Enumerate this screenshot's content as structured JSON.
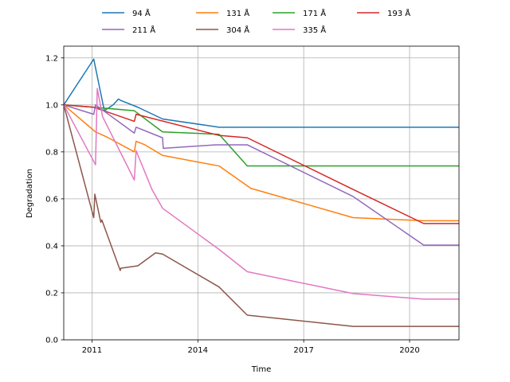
{
  "chart_data": {
    "type": "line",
    "title": "",
    "xlabel": "Time",
    "ylabel": "Degradation",
    "xlim": [
      2010.2,
      2021.4
    ],
    "ylim": [
      0.0,
      1.25
    ],
    "x_ticks": [
      2011,
      2014,
      2017,
      2020
    ],
    "x_tick_labels": [
      "2011",
      "2014",
      "2017",
      "2020"
    ],
    "y_ticks": [
      0.0,
      0.2,
      0.4,
      0.6,
      0.8,
      1.0,
      1.2
    ],
    "y_tick_labels": [
      "0.0",
      "0.2",
      "0.4",
      "0.6",
      "0.8",
      "1.0",
      "1.2"
    ],
    "grid": true,
    "legend_position": "top-center, outside plot, 4 columns",
    "series": [
      {
        "name": "94 Å",
        "color": "#1f77b4",
        "x": [
          2010.2,
          2011.05,
          2011.35,
          2011.6,
          2011.75,
          2011.8,
          2012.3,
          2013.0,
          2014.6,
          2021.4
        ],
        "y": [
          1.0,
          1.195,
          0.975,
          1.0,
          1.025,
          1.02,
          0.99,
          0.94,
          0.905,
          0.905
        ]
      },
      {
        "name": "131 Å",
        "color": "#ff7f0e",
        "x": [
          2010.2,
          2011.1,
          2011.4,
          2012.2,
          2012.25,
          2012.5,
          2013.0,
          2014.6,
          2015.5,
          2018.4,
          2020.4,
          2021.4
        ],
        "y": [
          1.0,
          0.885,
          0.865,
          0.8,
          0.845,
          0.83,
          0.785,
          0.74,
          0.645,
          0.52,
          0.507,
          0.507
        ]
      },
      {
        "name": "171 Å",
        "color": "#2ca02c",
        "x": [
          2010.2,
          2011.05,
          2012.2,
          2013.0,
          2014.6,
          2015.4,
          2021.4
        ],
        "y": [
          1.0,
          0.99,
          0.975,
          0.885,
          0.875,
          0.74,
          0.74
        ]
      },
      {
        "name": "193 Å",
        "color": "#d62728",
        "x": [
          2010.2,
          2011.05,
          2012.2,
          2012.25,
          2014.6,
          2015.4,
          2018.4,
          2020.4,
          2021.4
        ],
        "y": [
          1.0,
          0.99,
          0.93,
          0.96,
          0.87,
          0.86,
          0.64,
          0.495,
          0.495
        ]
      },
      {
        "name": "211 Å",
        "color": "#9467bd",
        "x": [
          2010.2,
          2011.05,
          2011.1,
          2012.2,
          2012.25,
          2013.0,
          2013.02,
          2014.5,
          2015.4,
          2018.4,
          2020.4,
          2021.4
        ],
        "y": [
          1.0,
          0.96,
          1.0,
          0.88,
          0.905,
          0.86,
          0.815,
          0.83,
          0.83,
          0.61,
          0.403,
          0.403
        ]
      },
      {
        "name": "304 Å",
        "color": "#8c564b",
        "x": [
          2010.2,
          2011.05,
          2011.08,
          2011.25,
          2011.28,
          2011.45,
          2011.8,
          2011.82,
          2012.3,
          2012.8,
          2013.0,
          2014.6,
          2015.4,
          2018.4,
          2021.4
        ],
        "y": [
          1.0,
          0.52,
          0.62,
          0.5,
          0.51,
          0.44,
          0.295,
          0.305,
          0.315,
          0.37,
          0.365,
          0.225,
          0.105,
          0.057,
          0.057
        ]
      },
      {
        "name": "335 Å",
        "color": "#e377c2",
        "x": [
          2010.2,
          2011.1,
          2011.15,
          2011.3,
          2012.2,
          2012.25,
          2012.7,
          2013.0,
          2014.6,
          2015.4,
          2018.4,
          2020.4,
          2021.4
        ],
        "y": [
          1.0,
          0.745,
          1.07,
          0.95,
          0.68,
          0.805,
          0.64,
          0.56,
          0.385,
          0.29,
          0.197,
          0.173,
          0.173
        ]
      }
    ]
  }
}
